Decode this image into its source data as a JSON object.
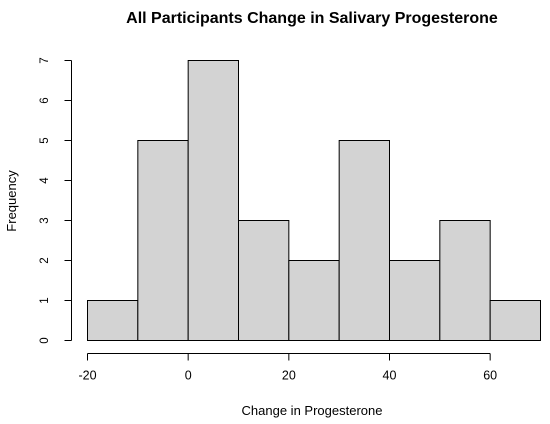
{
  "chart_data": {
    "type": "bar",
    "title": "All Participants Change in Salivary Progesterone",
    "xlabel": "Change in Progesterone",
    "ylabel": "Frequency",
    "bins": [
      {
        "x0": -20,
        "x1": -10,
        "count": 1
      },
      {
        "x0": -10,
        "x1": 0,
        "count": 5
      },
      {
        "x0": 0,
        "x1": 10,
        "count": 7
      },
      {
        "x0": 10,
        "x1": 20,
        "count": 3
      },
      {
        "x0": 20,
        "x1": 30,
        "count": 2
      },
      {
        "x0": 30,
        "x1": 40,
        "count": 5
      },
      {
        "x0": 40,
        "x1": 50,
        "count": 2
      },
      {
        "x0": 50,
        "x1": 60,
        "count": 3
      },
      {
        "x0": 60,
        "x1": 70,
        "count": 1
      }
    ],
    "xticks": [
      -20,
      0,
      20,
      40,
      60
    ],
    "yticks": [
      0,
      1,
      2,
      3,
      4,
      5,
      6,
      7
    ],
    "xlim": [
      -20,
      70
    ],
    "ylim": [
      0,
      7
    ],
    "grid": false,
    "bar_color": "#d3d3d3",
    "edge_color": "#000000"
  }
}
